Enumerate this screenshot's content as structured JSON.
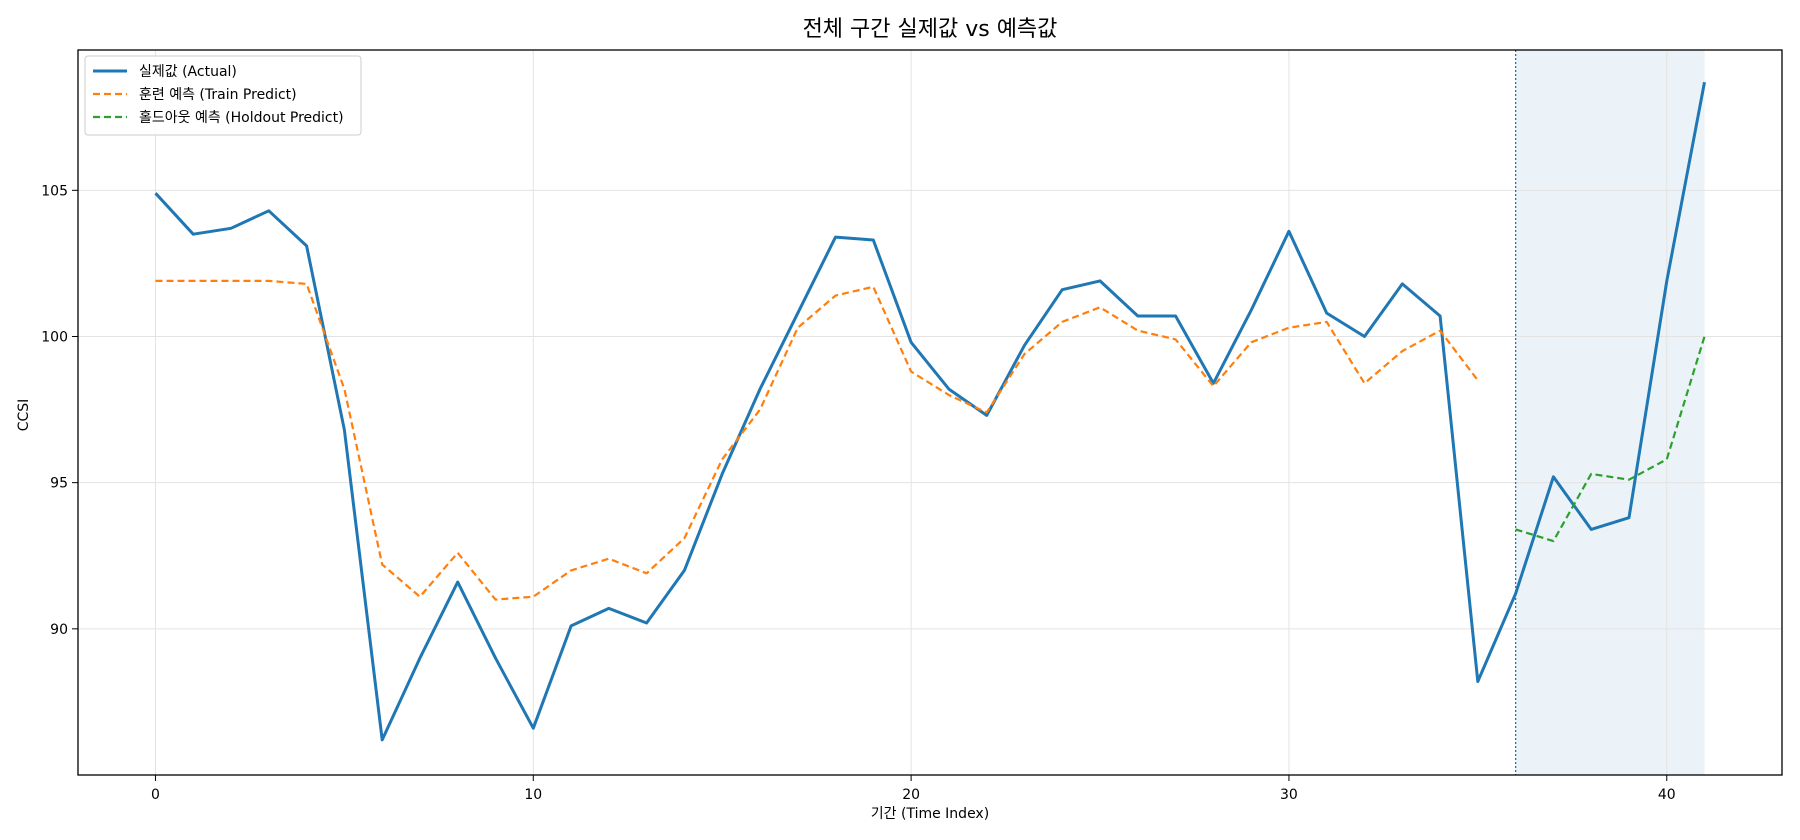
{
  "chart_data": {
    "type": "line",
    "title": "전체 구간 실제값 vs 예측값",
    "xlabel": "기간 (Time Index)",
    "ylabel": "CCSI",
    "xlim": [
      -2.05,
      43.05
    ],
    "ylim": [
      85.0,
      109.8
    ],
    "x_ticks": [
      0,
      10,
      20,
      30,
      40
    ],
    "y_ticks": [
      90,
      95,
      100,
      105
    ],
    "grid": true,
    "legend_position": "top-left",
    "holdout_region": {
      "x_start": 36,
      "x_end": 41,
      "color": "#1f77b4"
    },
    "series": [
      {
        "name": "실제값 (Actual)",
        "color": "#1f77b4",
        "style": "solid",
        "x": [
          0,
          1,
          2,
          3,
          4,
          5,
          6,
          7,
          8,
          9,
          10,
          11,
          12,
          13,
          14,
          15,
          16,
          17,
          18,
          19,
          20,
          21,
          22,
          23,
          24,
          25,
          26,
          27,
          28,
          29,
          30,
          31,
          32,
          33,
          34,
          35,
          36,
          37,
          38,
          39,
          40,
          41
        ],
        "values": [
          104.9,
          103.5,
          103.7,
          104.3,
          103.1,
          96.8,
          86.2,
          89.0,
          91.6,
          89.0,
          86.6,
          90.1,
          90.7,
          90.2,
          92.0,
          95.3,
          98.2,
          100.8,
          103.4,
          103.3,
          99.8,
          98.2,
          97.3,
          99.7,
          101.6,
          101.9,
          100.7,
          100.7,
          98.4,
          100.9,
          103.6,
          100.8,
          100.0,
          101.8,
          100.7,
          88.2,
          91.2,
          95.2,
          93.4,
          93.8,
          101.9,
          108.7
        ]
      },
      {
        "name": "훈련 예측 (Train Predict)",
        "color": "#ff7f0e",
        "style": "dashed",
        "x": [
          0,
          1,
          2,
          3,
          4,
          5,
          6,
          7,
          8,
          9,
          10,
          11,
          12,
          13,
          14,
          15,
          16,
          17,
          18,
          19,
          20,
          21,
          22,
          23,
          24,
          25,
          26,
          27,
          28,
          29,
          30,
          31,
          32,
          33,
          34,
          35
        ],
        "values": [
          101.9,
          101.9,
          101.9,
          101.9,
          101.8,
          98.2,
          92.2,
          91.1,
          92.6,
          91.0,
          91.1,
          92.0,
          92.4,
          91.9,
          93.1,
          95.8,
          97.5,
          100.3,
          101.4,
          101.7,
          98.8,
          98.0,
          97.4,
          99.4,
          100.5,
          101.0,
          100.2,
          99.9,
          98.3,
          99.8,
          100.3,
          100.5,
          98.4,
          99.5,
          100.2,
          98.5
        ]
      },
      {
        "name": "홀드아웃 예측 (Holdout Predict)",
        "color": "#2ca02c",
        "style": "dashed",
        "x": [
          36,
          37,
          38,
          39,
          40,
          41
        ],
        "values": [
          93.4,
          93.0,
          95.3,
          95.1,
          95.8,
          100.0
        ]
      }
    ]
  }
}
